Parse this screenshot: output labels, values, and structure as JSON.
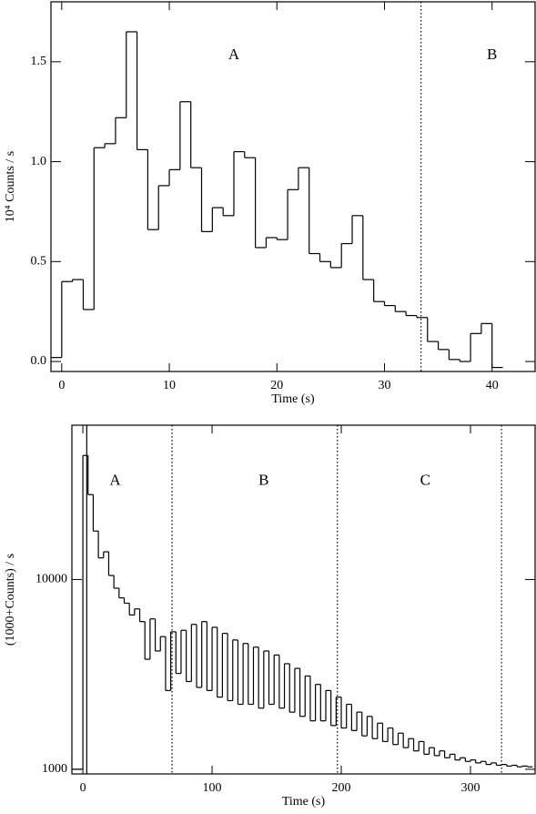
{
  "chart_data": [
    {
      "type": "histogram",
      "xlabel": "Time (s)",
      "ylabel": "10⁴ Counts / s",
      "bins": [
        -1,
        0,
        1,
        2,
        3,
        4,
        5,
        6,
        7,
        8,
        9,
        10,
        11,
        12,
        13,
        14,
        15,
        16,
        17,
        18,
        19,
        20,
        21,
        22,
        23,
        24,
        25,
        26,
        27,
        28,
        29,
        30,
        31,
        32,
        33,
        34,
        35,
        36,
        37,
        38,
        39,
        40,
        41
      ],
      "values": [
        0.02,
        0.4,
        0.41,
        0.26,
        1.07,
        1.09,
        1.22,
        1.65,
        1.06,
        0.66,
        0.88,
        0.96,
        1.3,
        0.97,
        0.65,
        0.77,
        0.73,
        1.05,
        1.02,
        0.57,
        0.62,
        0.61,
        0.86,
        0.97,
        0.54,
        0.5,
        0.47,
        0.59,
        0.73,
        0.41,
        0.3,
        0.28,
        0.25,
        0.23,
        0.22,
        0.1,
        0.06,
        0.01,
        0.0,
        0.14,
        0.19,
        -0.03
      ],
      "color": "#000000",
      "xlim": [
        -1,
        44
      ],
      "ylim": [
        -0.05,
        1.8
      ],
      "xticks": [
        0,
        10,
        20,
        30,
        40
      ],
      "yticks": [
        {
          "value": 0,
          "label": "0.0"
        },
        0.5,
        {
          "value": 1,
          "label": "1.0"
        },
        1.5
      ],
      "log_y": false,
      "vlines": [
        {
          "x": 33.4,
          "style": "dotted"
        }
      ],
      "annotations": [
        {
          "text": "A",
          "x": 16,
          "y": 1.53
        },
        {
          "text": "B",
          "x": 40,
          "y": 1.53
        }
      ]
    },
    {
      "type": "histogram",
      "xlabel": "Time (s)",
      "ylabel": "(1000+Counts) / s",
      "bins": [
        -8,
        0,
        4,
        8,
        12,
        16,
        20,
        24,
        28,
        32,
        36,
        40,
        44,
        48,
        52,
        56,
        60,
        64,
        68,
        72,
        76,
        80,
        84,
        88,
        92,
        96,
        100,
        104,
        108,
        112,
        116,
        120,
        124,
        128,
        132,
        136,
        140,
        144,
        148,
        152,
        156,
        160,
        164,
        168,
        172,
        176,
        180,
        184,
        188,
        192,
        196,
        200,
        204,
        208,
        212,
        216,
        220,
        224,
        228,
        232,
        236,
        240,
        244,
        248,
        252,
        256,
        260,
        264,
        268,
        272,
        276,
        280,
        284,
        288,
        292,
        296,
        300,
        304,
        308,
        312,
        316,
        320,
        324,
        328,
        332,
        336,
        340,
        344,
        348
      ],
      "values": [
        1000,
        45000,
        28000,
        18000,
        13000,
        14000,
        10500,
        9000,
        8000,
        7500,
        6500,
        7000,
        6000,
        3800,
        6200,
        4200,
        5000,
        2600,
        5300,
        3200,
        5400,
        2900,
        5800,
        2700,
        6000,
        2600,
        5600,
        2400,
        5200,
        2300,
        4800,
        2200,
        4600,
        2200,
        4400,
        2100,
        4200,
        2200,
        4000,
        2100,
        3600,
        2000,
        3400,
        1900,
        3100,
        1800,
        2800,
        1800,
        2600,
        1700,
        2400,
        1650,
        2200,
        1600,
        2000,
        1500,
        1900,
        1450,
        1750,
        1400,
        1650,
        1350,
        1550,
        1300,
        1450,
        1250,
        1400,
        1200,
        1300,
        1180,
        1250,
        1150,
        1200,
        1120,
        1150,
        1100,
        1120,
        1080,
        1100,
        1060,
        1080,
        1050,
        1060,
        1040,
        1050,
        1030,
        1040,
        1030
      ],
      "color": "#000000",
      "xlim": [
        -8.5,
        350
      ],
      "ylim": [
        945,
        65000
      ],
      "xticks": [
        0,
        100,
        200,
        300
      ],
      "yticks": [
        1000,
        10000
      ],
      "log_y": true,
      "vlines": [
        {
          "x": 3,
          "style": "solid"
        },
        {
          "x": 69,
          "style": "dotted"
        },
        {
          "x": 197,
          "style": "dotted"
        },
        {
          "x": 324,
          "style": "dotted"
        }
      ],
      "annotations": [
        {
          "text": "A",
          "x": 25,
          "y": 33000
        },
        {
          "text": "B",
          "x": 140,
          "y": 33000
        },
        {
          "text": "C",
          "x": 265,
          "y": 33000
        }
      ]
    }
  ]
}
